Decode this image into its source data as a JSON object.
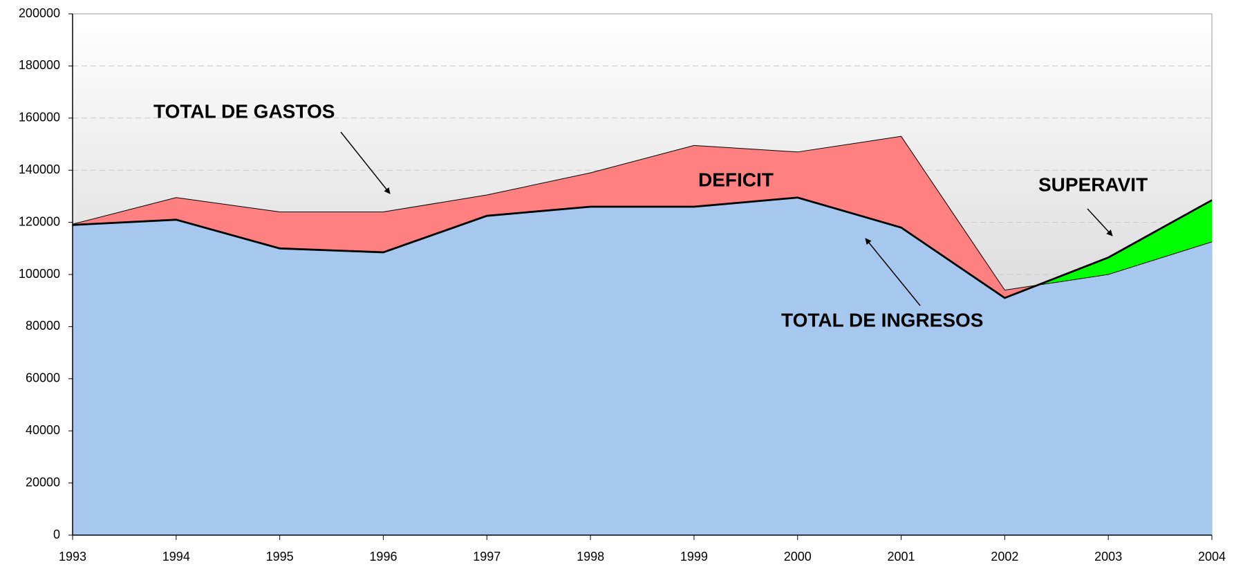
{
  "chart_data": {
    "type": "area",
    "categories": [
      "1993",
      "1994",
      "1995",
      "1996",
      "1997",
      "1998",
      "1999",
      "2000",
      "2001",
      "2002",
      "2003",
      "2004"
    ],
    "series": [
      {
        "name": "TOTAL DE GASTOS",
        "color": "#000000",
        "values": [
          119300,
          129500,
          124000,
          124000,
          130500,
          139000,
          149500,
          147000,
          153000,
          94000,
          100000,
          112500
        ]
      },
      {
        "name": "TOTAL DE INGRESOS",
        "color": "#000000",
        "values": [
          119000,
          121000,
          110000,
          108500,
          122500,
          126000,
          126000,
          129500,
          118000,
          91000,
          106500,
          128500
        ]
      }
    ],
    "fill_colors": {
      "below": "#a6c8ef",
      "deficit": "#ff8080",
      "superavit": "#00ff00"
    },
    "annotations": [
      "TOTAL DE GASTOS",
      "DEFICIT",
      "SUPERAVIT",
      "TOTAL DE INGRESOS"
    ],
    "ylim": [
      0,
      200000
    ],
    "yticks": [
      0,
      20000,
      40000,
      60000,
      80000,
      100000,
      120000,
      140000,
      160000,
      180000,
      200000
    ],
    "grid": true
  }
}
